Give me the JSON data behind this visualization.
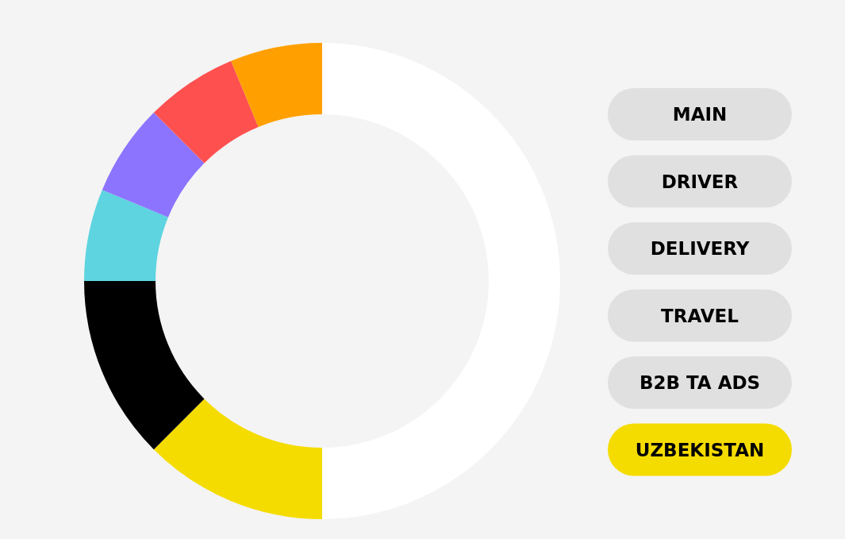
{
  "chart_data": [
    {
      "type": "donut",
      "categories": [
        null,
        null,
        null,
        null,
        null,
        null,
        null
      ],
      "values": [
        50,
        12.5,
        12.5,
        6.25,
        6.25,
        6.25,
        6.25
      ],
      "colors": [
        "#ffffff",
        "#f5dc00",
        "#000000",
        "#5dd4e0",
        "#8c74ff",
        "#ff5050",
        "#ffa000"
      ]
    },
    {
      "type": "other",
      "annotations": [
        "MAIN",
        "DRIVER",
        "DELIVERY",
        "TRAVEL",
        "B2B TA ADS",
        "UZBEKISTAN"
      ],
      "colors": [
        "#e0e0e0",
        "#e0e0e0",
        "#e0e0e0",
        "#e0e0e0",
        "#e0e0e0",
        "#f5dc00"
      ]
    }
  ]
}
